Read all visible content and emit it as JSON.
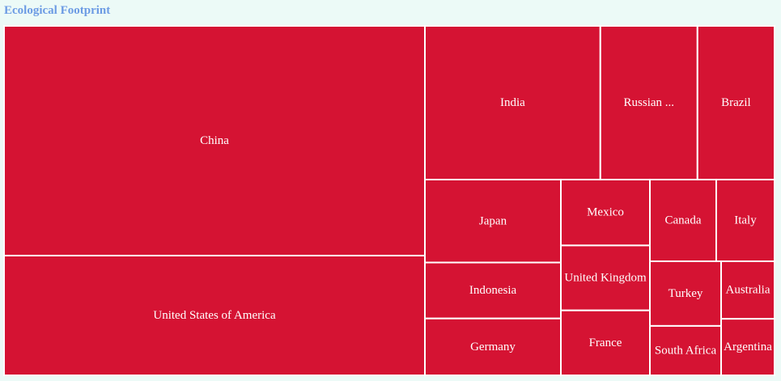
{
  "chart_data": {
    "type": "treemap",
    "title": "Ecological Footprint",
    "color": "#d51333",
    "border_color": "#ffffff",
    "title_color": "#6c9be4",
    "background": "#ecfaf7",
    "nodes": [
      {
        "name": "China",
        "label": "China",
        "value": 147488
      },
      {
        "name": "United States of America",
        "label": "United States of America",
        "value": 76874
      },
      {
        "name": "India",
        "label": "India",
        "value": 40455
      },
      {
        "name": "Russian Federation",
        "label": "Russian ...",
        "value": 22394
      },
      {
        "name": "Brazil",
        "label": "Brazil",
        "value": 17768
      },
      {
        "name": "Japan",
        "label": "Japan",
        "value": 17021
      },
      {
        "name": "Mexico",
        "label": "Mexico",
        "value": 8811
      },
      {
        "name": "Canada",
        "label": "Canada",
        "value": 8060
      },
      {
        "name": "Italy",
        "label": "Italy",
        "value": 7078
      },
      {
        "name": "Indonesia",
        "label": "Indonesia",
        "value": 11487
      },
      {
        "name": "United Kingdom",
        "label": "United Kingdom",
        "value": 8692
      },
      {
        "name": "Turkey",
        "label": "Turkey",
        "value": 6914
      },
      {
        "name": "Australia",
        "label": "Australia",
        "value": 6000
      },
      {
        "name": "Germany",
        "label": "Germany",
        "value": 11667
      },
      {
        "name": "France",
        "label": "France",
        "value": 8687
      },
      {
        "name": "South Africa",
        "label": "South Africa",
        "value": 5286
      },
      {
        "name": "Argentina",
        "label": "Argentina",
        "value": 5894
      }
    ]
  }
}
